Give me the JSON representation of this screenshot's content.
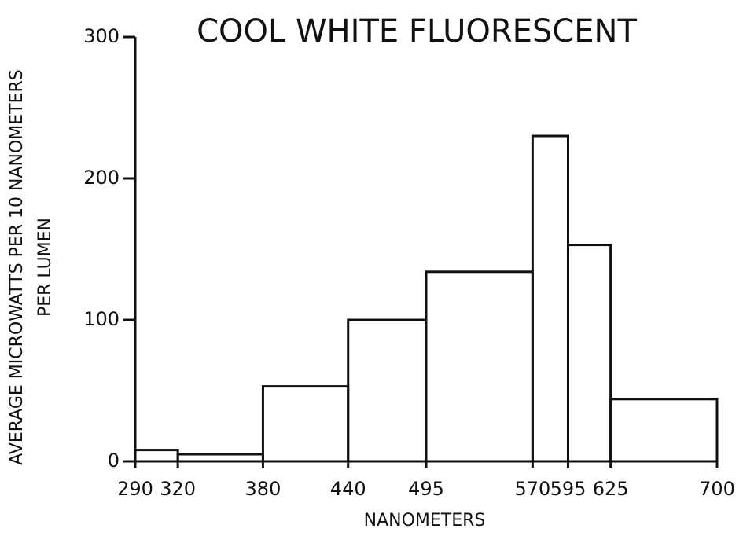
{
  "chart_data": {
    "type": "histogram",
    "title": "COOL WHITE FLUORESCENT",
    "xlabel": "NANOMETERS",
    "ylabel": [
      "AVERAGE MICROWATTS PER 10 NANOMETERS",
      "PER LUMEN"
    ],
    "bins": [
      290,
      320,
      380,
      440,
      495,
      570,
      595,
      625,
      700
    ],
    "counts": [
      8,
      5,
      53,
      100,
      134,
      230,
      153,
      44
    ],
    "color": "#111111",
    "xlim": [
      290,
      700
    ],
    "ylim": [
      0,
      300
    ],
    "xticks": [
      290,
      320,
      380,
      440,
      495,
      570,
      595,
      625,
      700
    ],
    "yticks": [
      0,
      100,
      200,
      300
    ],
    "grid": false
  }
}
